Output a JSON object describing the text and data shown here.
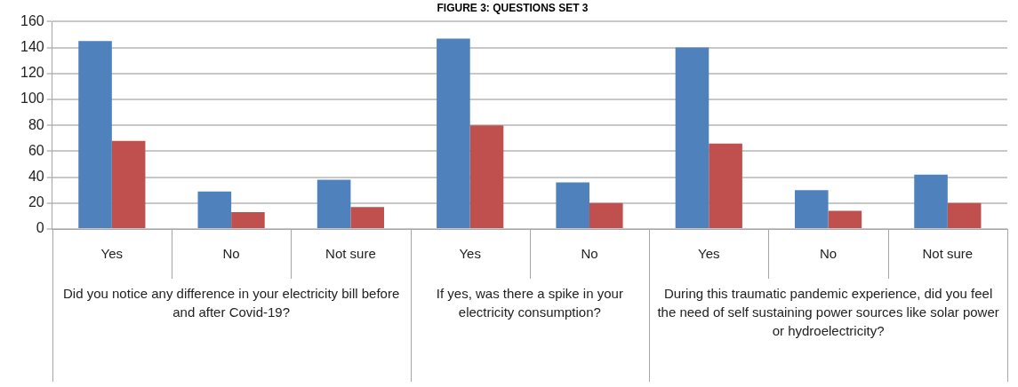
{
  "chart_data": {
    "type": "bar",
    "title": "FIGURE 3: QUESTIONS SET 3",
    "categories": [
      "Yes",
      "No",
      "Not sure",
      "Yes",
      "No",
      "Yes",
      "No",
      "Not sure"
    ],
    "series": [
      {
        "color": "#4f81bd",
        "values": [
          145,
          29,
          38,
          147,
          36,
          140,
          30,
          42
        ]
      },
      {
        "color": "#c0504d",
        "values": [
          68,
          13,
          17,
          80,
          20,
          66,
          14,
          20
        ]
      }
    ],
    "annotations": [
      "Did you notice any difference in your electricity bill before and after Covid-19?",
      "If yes, was there a spike in your electricity consumption?",
      "During this traumatic pandemic experience, did you feel the need of self sustaining power sources like solar power or hydroelectricity?"
    ],
    "ylim": [
      0,
      160
    ],
    "yticks": [
      0,
      20,
      40,
      60,
      80,
      100,
      120,
      140,
      160
    ],
    "grid": "y",
    "legend": false
  }
}
